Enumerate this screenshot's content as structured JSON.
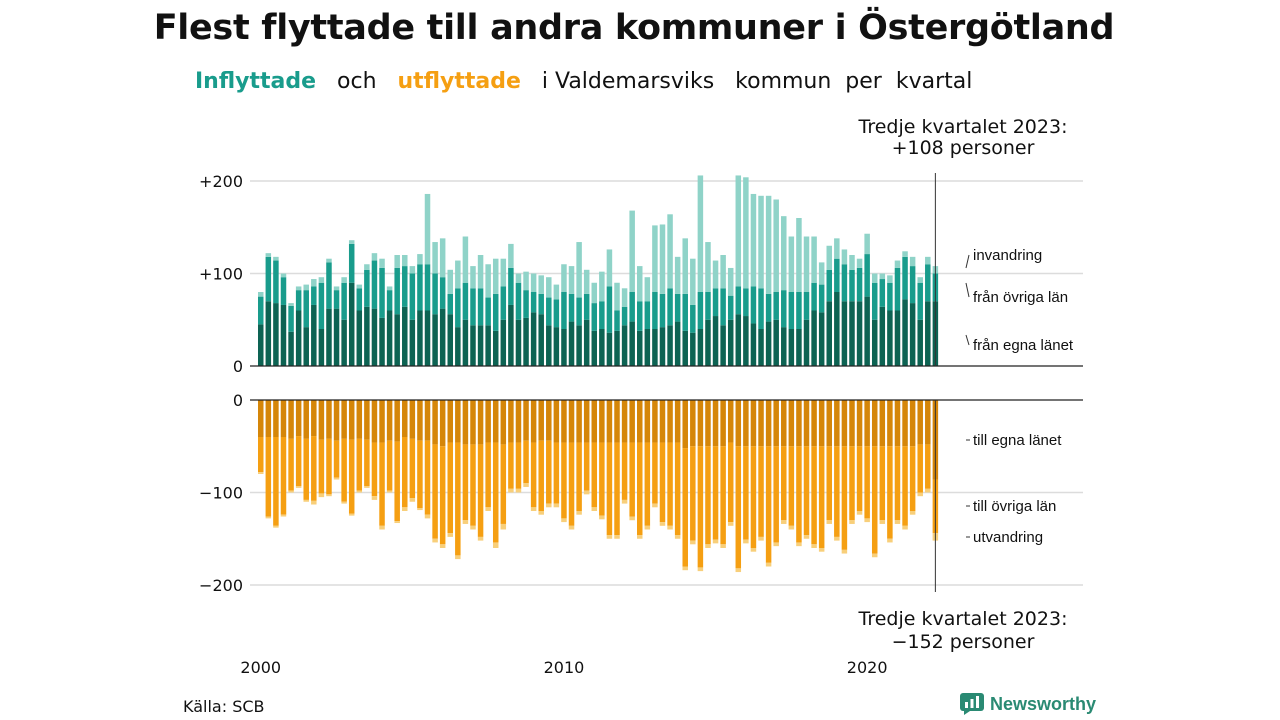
{
  "title": "Flest flyttade till andra kommuner i Östergötland",
  "subtitle": {
    "in_word": "Inflyttade",
    "and_word": "och",
    "out_word": "utflyttade",
    "rest": "i Valdemarsviks   kommun  per  kvartal"
  },
  "source": "Källa: SCB",
  "logo_text": "Newsworthy",
  "colors": {
    "in_own": "#0d6353",
    "in_other": "#199c8c",
    "in_immig": "#8fd3c8",
    "out_own": "#d58609",
    "out_other": "#f59f12",
    "out_emig": "#f8cf7a"
  },
  "chart_data": {
    "type": "bar",
    "stacked": true,
    "period": "quarter",
    "first_quarter": "2000 Q1",
    "last_quarter": "2023 Q3",
    "x_ticks": [
      "2000",
      "2010",
      "2020"
    ],
    "y_ticks_top": [
      "+200",
      "+100",
      "0"
    ],
    "y_ticks_bottom": [
      "0",
      "−100",
      "−200"
    ],
    "ylim_in": [
      0,
      200
    ],
    "ylim_out": [
      -200,
      0
    ],
    "grid": true,
    "annotation_top": [
      "Tredje kvartalet 2023:",
      "+108 personer"
    ],
    "annotation_bottom": [
      "Tredje kvartalet 2023:",
      "−152 personer"
    ],
    "in_series_labels": [
      "invandring",
      "från övriga län",
      "från egna länet"
    ],
    "out_series_labels": [
      "till egna länet",
      "till övriga län",
      "utvandring"
    ],
    "in_total": [
      80,
      122,
      118,
      100,
      68,
      86,
      88,
      94,
      96,
      116,
      86,
      96,
      136,
      88,
      110,
      122,
      116,
      86,
      120,
      120,
      108,
      121,
      186,
      134,
      138,
      104,
      114,
      140,
      108,
      120,
      110,
      116,
      116,
      132,
      100,
      102,
      100,
      98,
      96,
      88,
      110,
      108,
      134,
      104,
      90,
      102,
      126,
      90,
      84,
      168,
      108,
      96,
      152,
      153,
      164,
      118,
      138,
      116,
      206,
      134,
      114,
      120,
      106,
      206,
      204,
      186,
      184,
      184,
      180,
      162,
      140,
      160,
      140,
      140,
      112,
      130,
      138,
      126,
      120,
      116,
      143,
      100,
      100,
      98,
      114,
      124,
      118,
      96,
      118,
      108
    ],
    "in_immig": [
      5,
      4,
      4,
      4,
      3,
      4,
      6,
      8,
      6,
      4,
      4,
      6,
      4,
      4,
      6,
      8,
      10,
      4,
      14,
      12,
      8,
      11,
      76,
      34,
      42,
      26,
      30,
      50,
      24,
      36,
      36,
      38,
      30,
      26,
      10,
      20,
      20,
      20,
      22,
      16,
      30,
      30,
      60,
      26,
      22,
      32,
      40,
      30,
      20,
      88,
      38,
      26,
      72,
      75,
      80,
      40,
      60,
      50,
      126,
      54,
      30,
      36,
      30,
      120,
      120,
      100,
      100,
      106,
      100,
      80,
      60,
      80,
      60,
      50,
      24,
      26,
      22,
      16,
      16,
      10,
      22,
      10,
      6,
      8,
      8,
      6,
      10,
      6,
      8,
      8
    ],
    "in_other": [
      30,
      48,
      46,
      30,
      28,
      22,
      40,
      20,
      50,
      50,
      20,
      40,
      42,
      24,
      40,
      52,
      54,
      22,
      50,
      44,
      50,
      50,
      50,
      44,
      34,
      22,
      42,
      40,
      40,
      40,
      30,
      40,
      36,
      40,
      40,
      30,
      22,
      22,
      30,
      30,
      40,
      30,
      30,
      28,
      30,
      30,
      50,
      22,
      20,
      32,
      32,
      30,
      40,
      36,
      40,
      30,
      40,
      30,
      40,
      30,
      30,
      40,
      26,
      30,
      30,
      40,
      44,
      30,
      30,
      40,
      40,
      40,
      30,
      30,
      30,
      34,
      36,
      40,
      34,
      36,
      46,
      40,
      30,
      30,
      46,
      46,
      40,
      40,
      40,
      30
    ],
    "in_own": [
      45,
      70,
      68,
      66,
      37,
      60,
      42,
      66,
      40,
      62,
      62,
      50,
      90,
      60,
      64,
      62,
      52,
      60,
      56,
      64,
      50,
      60,
      60,
      56,
      62,
      56,
      42,
      50,
      44,
      44,
      44,
      38,
      50,
      66,
      50,
      52,
      58,
      56,
      44,
      42,
      40,
      48,
      44,
      50,
      38,
      40,
      36,
      38,
      44,
      48,
      38,
      40,
      40,
      42,
      44,
      48,
      38,
      36,
      40,
      50,
      54,
      44,
      50,
      56,
      54,
      46,
      40,
      48,
      50,
      42,
      40,
      40,
      50,
      60,
      58,
      70,
      80,
      70,
      70,
      70,
      75,
      50,
      64,
      60,
      60,
      72,
      68,
      50,
      70,
      70
    ],
    "out_total": [
      -80,
      -128,
      -138,
      -126,
      -100,
      -95,
      -110,
      -113,
      -105,
      -104,
      -86,
      -112,
      -125,
      -100,
      -95,
      -108,
      -140,
      -100,
      -133,
      -120,
      -110,
      -119,
      -128,
      -154,
      -160,
      -148,
      -172,
      -134,
      -140,
      -152,
      -120,
      -160,
      -140,
      -100,
      -100,
      -94,
      -120,
      -124,
      -116,
      -116,
      -132,
      -140,
      -124,
      -102,
      -120,
      -129,
      -150,
      -150,
      -112,
      -130,
      -150,
      -140,
      -116,
      -136,
      -140,
      -150,
      -184,
      -156,
      -185,
      -160,
      -155,
      -160,
      -136,
      -186,
      -155,
      -164,
      -152,
      -180,
      -158,
      -134,
      -140,
      -158,
      -150,
      -160,
      -164,
      -134,
      -152,
      -166,
      -134,
      -124,
      -132,
      -170,
      -134,
      -154,
      -134,
      -140,
      -124,
      -104,
      -100,
      -152
    ],
    "out_emig": [
      -2,
      -2,
      -2,
      -2,
      -2,
      -2,
      -2,
      -4,
      -4,
      -2,
      -2,
      -2,
      -2,
      -2,
      -2,
      -4,
      -4,
      -2,
      -2,
      -4,
      -4,
      -2,
      -4,
      -4,
      -4,
      -4,
      -4,
      -4,
      -4,
      -4,
      -4,
      -6,
      -6,
      -4,
      -4,
      -4,
      -4,
      -4,
      -4,
      -4,
      -4,
      -4,
      -4,
      -4,
      -4,
      -4,
      -4,
      -4,
      -4,
      -4,
      -4,
      -4,
      -4,
      -4,
      -4,
      -4,
      -4,
      -4,
      -4,
      -4,
      -4,
      -4,
      -4,
      -4,
      -4,
      -4,
      -4,
      -4,
      -4,
      -4,
      -4,
      -4,
      -4,
      -4,
      -4,
      -4,
      -4,
      -4,
      -4,
      -4,
      -4,
      -4,
      -4,
      -4,
      -4,
      -4,
      -4,
      -4,
      -4,
      -8
    ],
    "out_other": [
      -38,
      -86,
      -96,
      -84,
      -56,
      -54,
      -66,
      -70,
      -58,
      -60,
      -40,
      -68,
      -80,
      -56,
      -50,
      -58,
      -90,
      -54,
      -86,
      -76,
      -64,
      -73,
      -80,
      -102,
      -106,
      -98,
      -122,
      -82,
      -88,
      -100,
      -70,
      -108,
      -86,
      -50,
      -50,
      -46,
      -70,
      -76,
      -68,
      -66,
      -82,
      -90,
      -74,
      -52,
      -70,
      -79,
      -100,
      -100,
      -62,
      -80,
      -100,
      -90,
      -66,
      -86,
      -90,
      -100,
      -128,
      -102,
      -131,
      -106,
      -101,
      -106,
      -86,
      -132,
      -101,
      -110,
      -98,
      -126,
      -104,
      -80,
      -86,
      -104,
      -96,
      -106,
      -110,
      -80,
      -98,
      -112,
      -80,
      -70,
      -78,
      -116,
      -80,
      -100,
      -80,
      -86,
      -70,
      -52,
      -48,
      -58
    ],
    "out_own": [
      -40,
      -40,
      -40,
      -40,
      -42,
      -39,
      -42,
      -39,
      -43,
      -42,
      -44,
      -42,
      -43,
      -42,
      -43,
      -46,
      -46,
      -44,
      -45,
      -40,
      -42,
      -44,
      -44,
      -48,
      -50,
      -46,
      -46,
      -48,
      -48,
      -48,
      -46,
      -46,
      -48,
      -46,
      -46,
      -44,
      -46,
      -44,
      -44,
      -46,
      -46,
      -46,
      -46,
      -46,
      -46,
      -46,
      -46,
      -46,
      -46,
      -46,
      -46,
      -46,
      -46,
      -46,
      -46,
      -46,
      -52,
      -50,
      -50,
      -50,
      -50,
      -50,
      -46,
      -50,
      -50,
      -50,
      -50,
      -50,
      -50,
      -50,
      -50,
      -50,
      -50,
      -50,
      -50,
      -50,
      -50,
      -50,
      -50,
      -50,
      -50,
      -50,
      -50,
      -50,
      -50,
      -50,
      -50,
      -48,
      -48,
      -86
    ]
  }
}
